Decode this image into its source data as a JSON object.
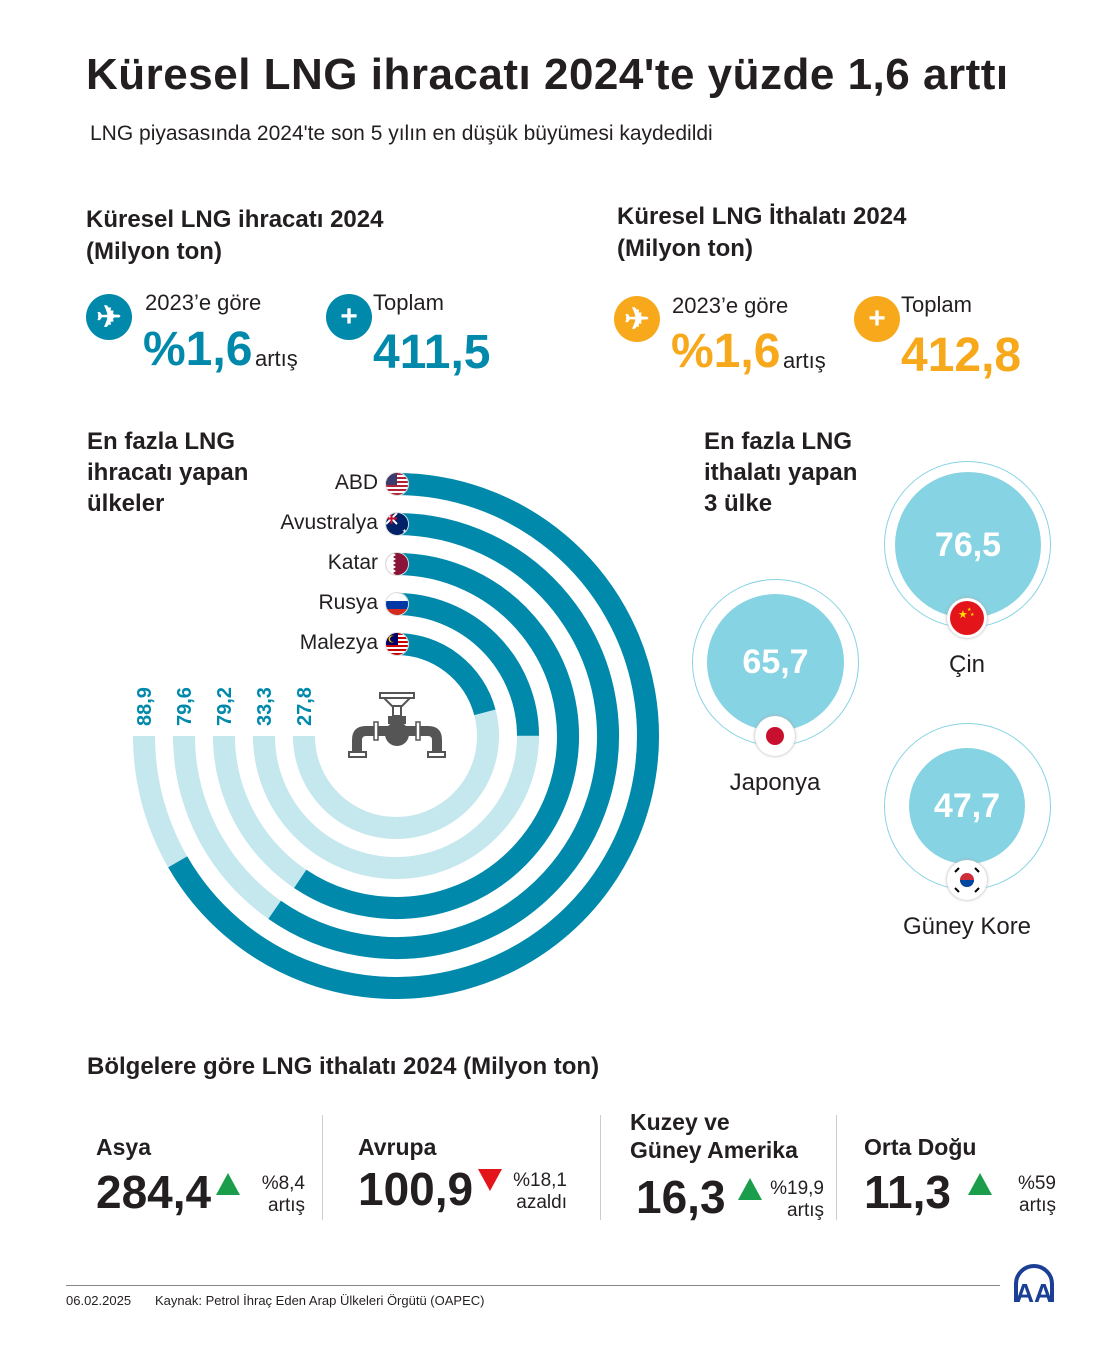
{
  "title": "Küresel LNG ihracatı 2024'te yüzde 1,6 arttı",
  "subtitle": "LNG piyasasında 2024'te son 5 yılın en düşük büyümesi kaydedildi",
  "export": {
    "heading1": "Küresel LNG ihracatı 2024",
    "heading2": "(Milyon ton)",
    "change_label": "2023’e göre",
    "change_value": "%1,6",
    "change_word": "artış",
    "total_label": "Toplam",
    "total_value": "411,5"
  },
  "import": {
    "heading1": "Küresel LNG İthalatı 2024",
    "heading2": "(Milyon ton)",
    "change_label": "2023’e göre",
    "change_value": "%1,6",
    "change_word": "artış",
    "total_label": "Toplam",
    "total_value": "412,8"
  },
  "exporters_title": [
    "En fazla LNG",
    "ihracatı yapan",
    "ülkeler"
  ],
  "importers_title": [
    "En fazla LNG",
    "ithalatı yapan",
    "3 ülke"
  ],
  "importers": [
    {
      "name": "Çin",
      "value": "76,5"
    },
    {
      "name": "Japonya",
      "value": "65,7"
    },
    {
      "name": "Güney Kore",
      "value": "47,7"
    }
  ],
  "regions_title": "Bölgelere göre LNG ithalatı 2024 (Milyon ton)",
  "regions": [
    {
      "name1": "Asya",
      "name2": "",
      "value": "284,4",
      "pct": "%8,4",
      "word": "artış",
      "dir": "up"
    },
    {
      "name1": "Avrupa",
      "name2": "",
      "value": "100,9",
      "pct": "%18,1",
      "word": "azaldı",
      "dir": "down"
    },
    {
      "name1": "Kuzey ve",
      "name2": "Güney Amerika",
      "value": "16,3",
      "pct": "%19,9",
      "word": "artış",
      "dir": "up"
    },
    {
      "name1": "Orta Doğu",
      "name2": "",
      "value": "11,3",
      "pct": "%59",
      "word": "artış",
      "dir": "up"
    }
  ],
  "footer": {
    "date": "06.02.2025",
    "source": "Kaynak: Petrol İhraç Eden Arap Ülkeleri Örgütü (OAPEC)",
    "logo": "AA"
  },
  "colors": {
    "teal": "#0089aa",
    "light": "#c5e7ee",
    "orange": "#f7a81b",
    "bubble": "#86d3e3",
    "up": "#1a9e4b",
    "down": "#e3151a"
  },
  "chart_data": {
    "type": "radial-bar",
    "title": "En fazla LNG ihracatı yapan ülkeler",
    "unit": "Milyon ton",
    "scale_max": 100,
    "categories": [
      "ABD",
      "Avustralya",
      "Katar",
      "Rusya",
      "Malezya"
    ],
    "values": [
      88.9,
      79.6,
      79.2,
      33.3,
      27.8
    ],
    "value_labels": [
      "88,9",
      "79,6",
      "79,2",
      "33,3",
      "27,8"
    ]
  }
}
